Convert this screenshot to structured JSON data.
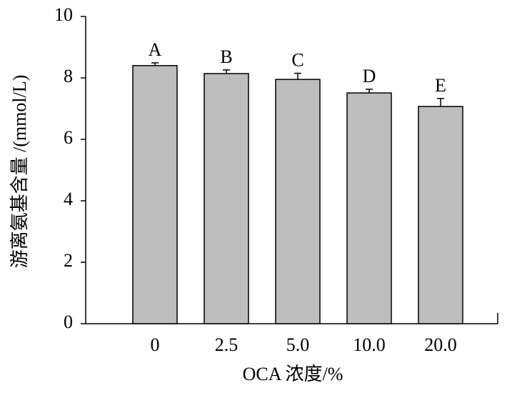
{
  "chart_data": {
    "type": "bar",
    "x_label": "OCA 浓度/%",
    "y_label": "游离氨基含量 /(mmol/L)",
    "categories": [
      "0",
      "2.5",
      "5.0",
      "10.0",
      "20.0"
    ],
    "values": [
      8.4,
      8.14,
      7.95,
      7.51,
      7.07
    ],
    "errors": [
      0.09,
      0.12,
      0.2,
      0.12,
      0.26
    ],
    "annotations": [
      "A",
      "B",
      "C",
      "D",
      "E"
    ],
    "color": "#bdbdbd",
    "ylim": [
      0,
      10
    ],
    "yticks": [
      0,
      2,
      4,
      6,
      8,
      10
    ],
    "grid": false
  }
}
